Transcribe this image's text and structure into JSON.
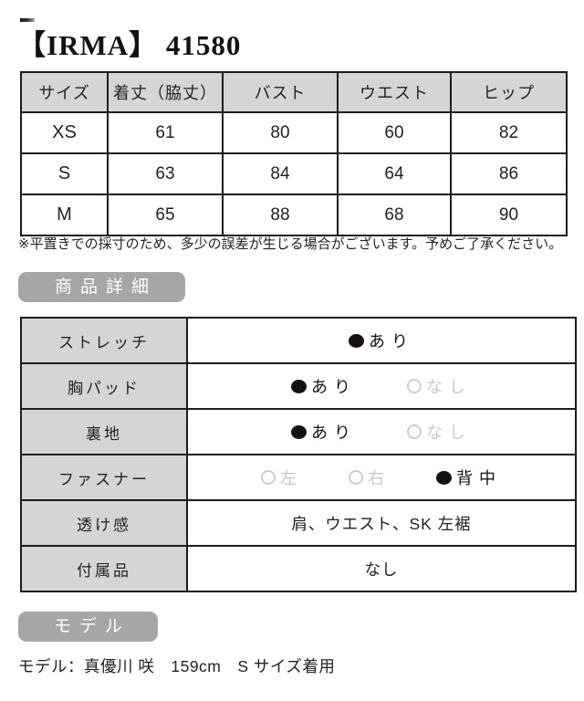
{
  "header": {
    "title": "【IRMA】 41580"
  },
  "size_table": {
    "headers": [
      "サイズ",
      "着丈（脇丈）",
      "バスト",
      "ウエスト",
      "ヒップ"
    ],
    "rows": [
      [
        "XS",
        "61",
        "80",
        "60",
        "82"
      ],
      [
        "S",
        "63",
        "84",
        "64",
        "86"
      ],
      [
        "M",
        "65",
        "88",
        "68",
        "90"
      ]
    ]
  },
  "note": "※平置きでの採寸のため、多少の誤差が生じる場合がございます。予めご了承ください。",
  "sections": {
    "details_heading": "商品詳細",
    "model_heading": "モデル"
  },
  "details": [
    {
      "label": "ストレッチ",
      "options": [
        {
          "text": "あり",
          "selected": true
        }
      ]
    },
    {
      "label": "胸パッド",
      "options": [
        {
          "text": "あり",
          "selected": true
        },
        {
          "text": "なし",
          "selected": false
        }
      ]
    },
    {
      "label": "裏地",
      "options": [
        {
          "text": "あり",
          "selected": true
        },
        {
          "text": "なし",
          "selected": false
        }
      ]
    },
    {
      "label": "ファスナー",
      "options": [
        {
          "text": "左",
          "selected": false
        },
        {
          "text": "右",
          "selected": false
        },
        {
          "text": "背中",
          "selected": true
        }
      ]
    },
    {
      "label": "透け感",
      "text": "肩、ウエスト、SK 左裾"
    },
    {
      "label": "付属品",
      "text": "なし"
    }
  ],
  "model_info": "モデル：真優川 咲　159cm　S サイズ着用",
  "colors": {
    "table_header_gray": "#d5d5d5",
    "badge_gray": "#a6a6a6",
    "disabled_gray": "#c9c9c9",
    "border_dark": "#1c1c1c",
    "selected_dot": "#171010"
  }
}
